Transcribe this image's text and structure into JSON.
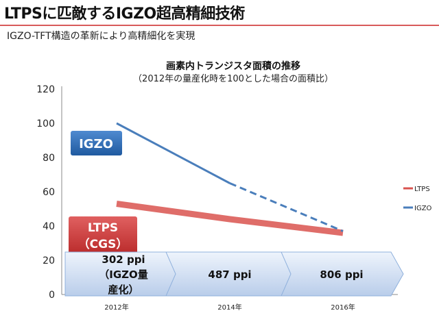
{
  "slide": {
    "title": "LTPSに匹敵するIGZO超高精細技術",
    "subtitle": "IGZO-TFT構造の革新により高精細化を実現"
  },
  "chart_data": {
    "type": "line",
    "title": "画素内トランジスタ面積の推移",
    "subtitle": "（2012年の量産化時を100とした場合の面積比）",
    "categories": [
      "2012年",
      "2014年",
      "2016年"
    ],
    "ylim": [
      0,
      120
    ],
    "yticks": [
      0,
      20,
      40,
      60,
      80,
      100,
      120
    ],
    "grid": false,
    "legend_position": "right",
    "series": [
      {
        "name": "LTPS",
        "values": [
          53,
          44,
          36
        ],
        "color": "#d9534f",
        "line_style": "solid"
      },
      {
        "name": "IGZO",
        "values": [
          100,
          65,
          37
        ],
        "color": "#4a7ebb",
        "line_style": "solid-then-dashed"
      }
    ],
    "callouts": [
      {
        "text": "IGZO",
        "color": "#2e6fb5"
      },
      {
        "text": "LTPS\n（CGS）",
        "color": "#c93a3a"
      }
    ],
    "ppi_labels": [
      "302 ppi\n（IGZO量\n産化）",
      "487 ppi",
      "806 ppi"
    ]
  }
}
